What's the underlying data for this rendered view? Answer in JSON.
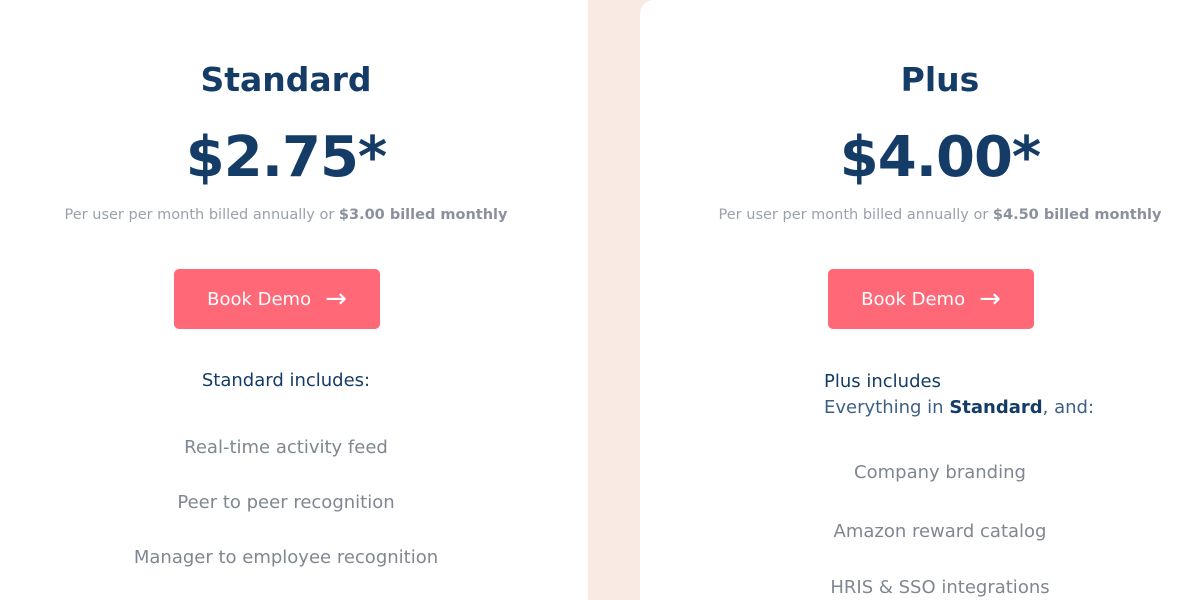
{
  "plans": [
    {
      "name": "Standard",
      "price": "$2.75*",
      "billing_prefix": "Per user per month billed annually or ",
      "billing_monthly": "$3.00 billed monthly",
      "button": "Book Demo",
      "includes": "Standard includes:",
      "features": [
        "Real-time activity feed",
        "Peer to peer recognition",
        "Manager to employee recognition"
      ]
    },
    {
      "name": "Plus",
      "price": "$4.00*",
      "billing_prefix": "Per user per month billed annually or ",
      "billing_monthly": "$4.50 billed monthly",
      "button": "Book Demo",
      "includes": "Plus includes",
      "includes_line2_prefix": "Everything in ",
      "includes_line2_bold": "Standard",
      "includes_line2_suffix": ", and:",
      "features": [
        "Company branding",
        "Amazon reward catalog",
        "HRIS & SSO integrations"
      ]
    }
  ],
  "colors": {
    "accent": "#fe6877",
    "heading": "#153c66",
    "background": "#f9ebe4"
  },
  "icons": {
    "button": "arrow-right-icon"
  }
}
